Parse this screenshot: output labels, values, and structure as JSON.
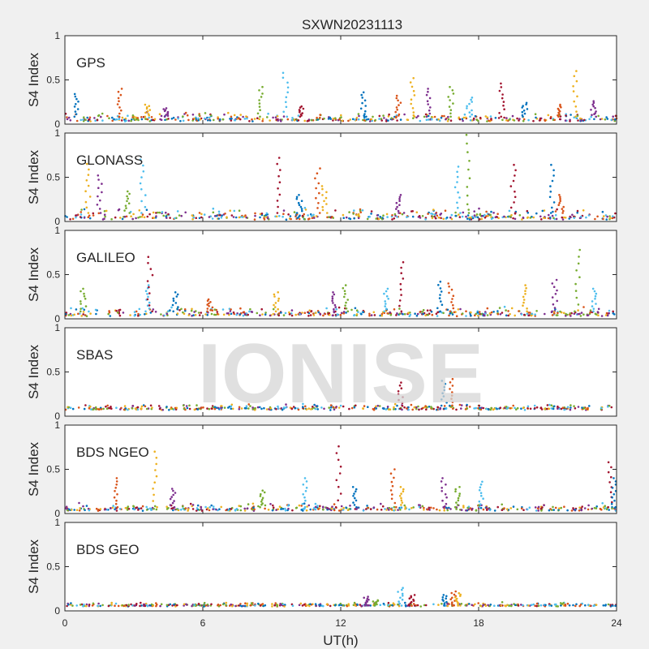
{
  "figure": {
    "title": "SXWN20231113",
    "watermark": "IONISE",
    "xlabel": "UT(h)",
    "ylabel": "S4 Index",
    "x_ticks": [
      "0",
      "6",
      "12",
      "18",
      "24"
    ],
    "y_ticks": [
      "0",
      "0.5",
      "1"
    ]
  },
  "chart_data": [
    {
      "type": "scatter",
      "panel_label": "GPS",
      "xlim": [
        0,
        24
      ],
      "ylim": [
        0,
        1
      ],
      "xlabel": "",
      "ylabel": "S4 Index",
      "grid": false,
      "baseline": [
        0.03,
        0.14
      ],
      "spikes": [
        [
          0.5,
          0.34
        ],
        [
          2.4,
          0.4
        ],
        [
          3.6,
          0.22
        ],
        [
          4.4,
          0.18
        ],
        [
          8.5,
          0.42
        ],
        [
          9.6,
          0.58
        ],
        [
          10.3,
          0.2
        ],
        [
          13.0,
          0.36
        ],
        [
          14.5,
          0.32
        ],
        [
          15.1,
          0.52
        ],
        [
          15.8,
          0.4
        ],
        [
          16.8,
          0.42
        ],
        [
          17.6,
          0.3
        ],
        [
          19.0,
          0.46
        ],
        [
          20.0,
          0.24
        ],
        [
          21.5,
          0.22
        ],
        [
          22.2,
          0.6
        ],
        [
          23.0,
          0.26
        ]
      ]
    },
    {
      "type": "scatter",
      "panel_label": "GLONASS",
      "xlim": [
        0,
        24
      ],
      "ylim": [
        0,
        1
      ],
      "xlabel": "",
      "ylabel": "S4 Index",
      "grid": false,
      "baseline": [
        0.02,
        0.16
      ],
      "spikes": [
        [
          1.0,
          0.65
        ],
        [
          1.5,
          0.52
        ],
        [
          2.7,
          0.34
        ],
        [
          3.4,
          0.7
        ],
        [
          9.3,
          0.72
        ],
        [
          10.2,
          0.3
        ],
        [
          11.0,
          0.6
        ],
        [
          11.3,
          0.4
        ],
        [
          14.5,
          0.3
        ],
        [
          17.5,
          0.98
        ],
        [
          17.1,
          0.62
        ],
        [
          19.5,
          0.64
        ],
        [
          21.2,
          0.64
        ],
        [
          21.6,
          0.3
        ]
      ]
    },
    {
      "type": "scatter",
      "panel_label": "GALILEO",
      "xlim": [
        0,
        24
      ],
      "ylim": [
        0,
        1
      ],
      "xlabel": "",
      "ylabel": "S4 Index",
      "grid": false,
      "baseline": [
        0.03,
        0.14
      ],
      "spikes": [
        [
          0.8,
          0.34
        ],
        [
          3.6,
          0.38
        ],
        [
          3.7,
          0.7
        ],
        [
          4.8,
          0.3
        ],
        [
          6.3,
          0.22
        ],
        [
          9.2,
          0.3
        ],
        [
          11.7,
          0.3
        ],
        [
          12.2,
          0.38
        ],
        [
          14.0,
          0.34
        ],
        [
          14.6,
          0.64
        ],
        [
          16.3,
          0.42
        ],
        [
          16.8,
          0.4
        ],
        [
          20.0,
          0.38
        ],
        [
          21.3,
          0.44
        ],
        [
          22.3,
          0.78
        ],
        [
          23.0,
          0.34
        ]
      ]
    },
    {
      "type": "scatter",
      "panel_label": "SBAS",
      "xlim": [
        0,
        24
      ],
      "ylim": [
        0,
        1
      ],
      "xlabel": "",
      "ylabel": "S4 Index",
      "grid": false,
      "baseline": [
        0.07,
        0.14
      ],
      "spikes": [
        [
          14.6,
          0.38
        ],
        [
          16.5,
          0.4
        ],
        [
          16.8,
          0.42
        ]
      ]
    },
    {
      "type": "scatter",
      "panel_label": "BDS NGEO",
      "xlim": [
        0,
        24
      ],
      "ylim": [
        0,
        1
      ],
      "xlabel": "",
      "ylabel": "S4 Index",
      "grid": false,
      "baseline": [
        0.03,
        0.12
      ],
      "spikes": [
        [
          2.2,
          0.4
        ],
        [
          3.9,
          0.7
        ],
        [
          4.7,
          0.28
        ],
        [
          8.6,
          0.26
        ],
        [
          10.4,
          0.4
        ],
        [
          11.9,
          0.76
        ],
        [
          12.6,
          0.3
        ],
        [
          14.3,
          0.5
        ],
        [
          14.7,
          0.3
        ],
        [
          16.5,
          0.4
        ],
        [
          17.1,
          0.3
        ],
        [
          18.1,
          0.36
        ],
        [
          23.7,
          0.58
        ],
        [
          23.9,
          0.4
        ]
      ]
    },
    {
      "type": "scatter",
      "panel_label": "BDS GEO",
      "xlim": [
        0,
        24
      ],
      "ylim": [
        0,
        1
      ],
      "xlabel": "",
      "ylabel": "S4 Index",
      "grid": false,
      "baseline": [
        0.05,
        0.1
      ],
      "spikes": [
        [
          13.1,
          0.16
        ],
        [
          13.5,
          0.12
        ],
        [
          14.6,
          0.26
        ],
        [
          15.1,
          0.18
        ],
        [
          16.5,
          0.18
        ],
        [
          16.9,
          0.22
        ],
        [
          17.1,
          0.2
        ]
      ]
    }
  ],
  "series_colors": [
    "#0072BD",
    "#D95319",
    "#EDB120",
    "#7E2F8E",
    "#77AC30",
    "#4DBEEE",
    "#A2142F"
  ],
  "axes_background": "#ffffff",
  "figure_background": "#f0f0f0"
}
